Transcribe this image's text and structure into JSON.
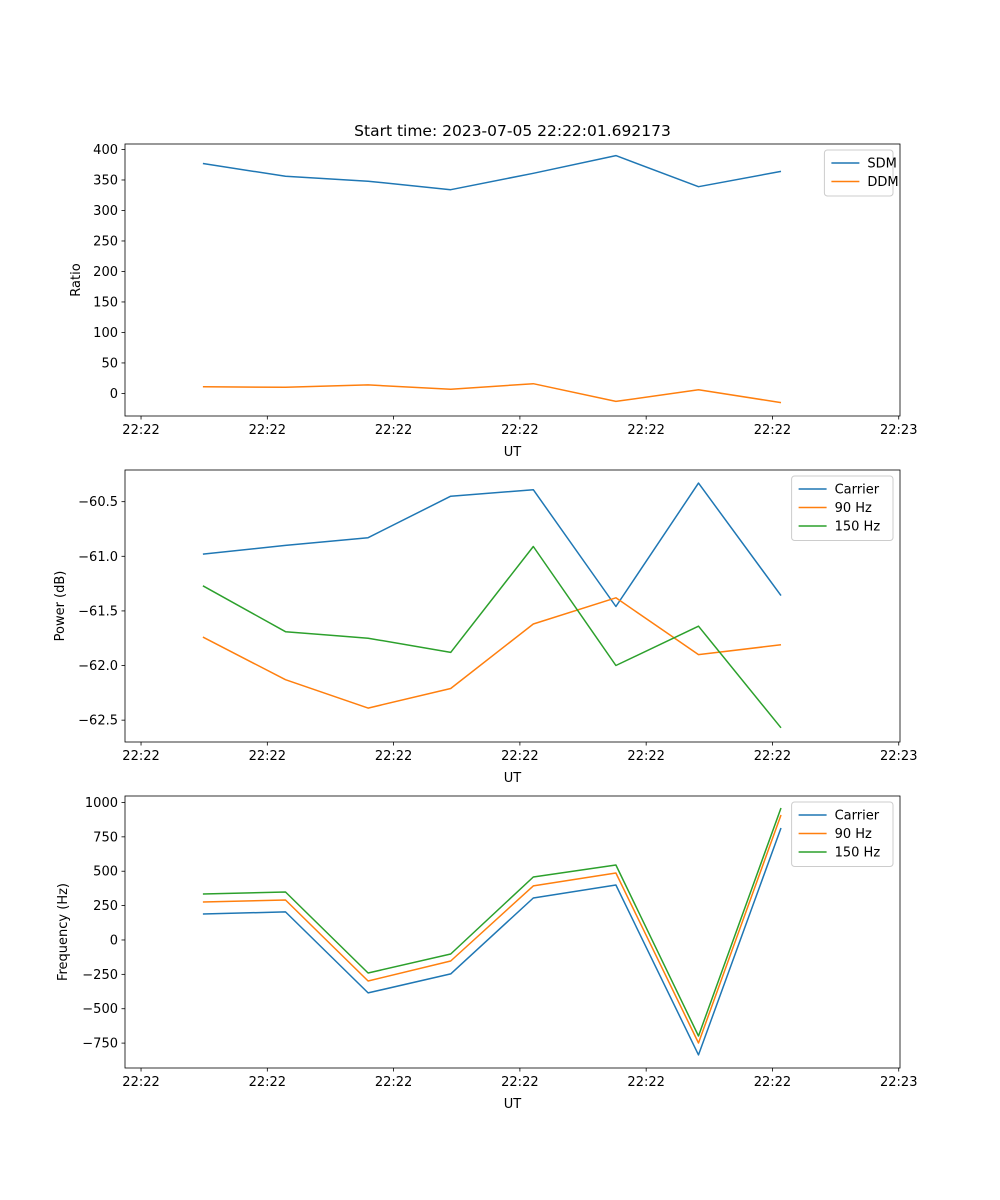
{
  "colors": {
    "blue": "#1f77b4",
    "orange": "#ff7f0e",
    "green": "#2ca02c"
  },
  "chart_data": [
    {
      "type": "line",
      "title": "Start time: 2023-07-05 22:22:01.692173",
      "xlabel": "UT",
      "ylabel": "Ratio",
      "x": [
        0.49,
        1.144,
        1.798,
        2.452,
        3.106,
        3.76,
        4.414,
        5.068
      ],
      "xlim": [
        -0.127,
        6.01
      ],
      "xticks": [
        0,
        1,
        2,
        3,
        4,
        5,
        6
      ],
      "xtick_labels": [
        "22:22",
        "22:22",
        "22:22",
        "22:22",
        "22:22",
        "22:22",
        "22:23"
      ],
      "ylim": [
        -37,
        409
      ],
      "yticks": [
        0,
        50,
        100,
        150,
        200,
        250,
        300,
        350,
        400
      ],
      "ytick_labels": [
        "0",
        "50",
        "100",
        "150",
        "200",
        "250",
        "300",
        "350",
        "400"
      ],
      "legend": "top-right",
      "series": [
        {
          "name": "SDM",
          "color": "#1f77b4",
          "values": [
            377,
            356,
            348,
            334,
            361,
            390,
            339,
            364
          ]
        },
        {
          "name": "DDM",
          "color": "#ff7f0e",
          "values": [
            11,
            10,
            14,
            7,
            16,
            -13,
            6,
            -15
          ]
        }
      ]
    },
    {
      "type": "line",
      "xlabel": "UT",
      "ylabel": "Power (dB)",
      "x": [
        0.49,
        1.144,
        1.798,
        2.452,
        3.106,
        3.76,
        4.414,
        5.068
      ],
      "xlim": [
        -0.127,
        6.01
      ],
      "xticks": [
        0,
        1,
        2,
        3,
        4,
        5,
        6
      ],
      "xtick_labels": [
        "22:22",
        "22:22",
        "22:22",
        "22:22",
        "22:22",
        "22:22",
        "22:23"
      ],
      "ylim": [
        -62.7,
        -60.21
      ],
      "yticks": [
        -60.5,
        -61.0,
        -61.5,
        -62.0,
        -62.5
      ],
      "ytick_labels": [
        "−60.5",
        "−61.0",
        "−61.5",
        "−62.0",
        "−62.5"
      ],
      "legend": "top-right",
      "series": [
        {
          "name": "Carrier",
          "color": "#1f77b4",
          "values": [
            -60.98,
            -60.9,
            -60.83,
            -60.45,
            -60.39,
            -61.46,
            -60.33,
            -61.36
          ]
        },
        {
          "name": "90 Hz",
          "color": "#ff7f0e",
          "values": [
            -61.74,
            -62.13,
            -62.39,
            -62.21,
            -61.62,
            -61.38,
            -61.9,
            -61.81
          ]
        },
        {
          "name": "150 Hz",
          "color": "#2ca02c",
          "values": [
            -61.27,
            -61.69,
            -61.75,
            -61.88,
            -60.91,
            -62.0,
            -61.64,
            -62.57
          ]
        }
      ]
    },
    {
      "type": "line",
      "xlabel": "UT",
      "ylabel": "Frequency (Hz)",
      "x": [
        0.49,
        1.144,
        1.798,
        2.452,
        3.106,
        3.76,
        4.414,
        5.068
      ],
      "xlim": [
        -0.127,
        6.01
      ],
      "xticks": [
        0,
        1,
        2,
        3,
        4,
        5,
        6
      ],
      "xtick_labels": [
        "22:22",
        "22:22",
        "22:22",
        "22:22",
        "22:22",
        "22:22",
        "22:23"
      ],
      "ylim": [
        -931,
        1047
      ],
      "yticks": [
        1000,
        750,
        500,
        250,
        0,
        -250,
        -500,
        -750
      ],
      "ytick_labels": [
        "1000",
        "750",
        "500",
        "250",
        "0",
        "−250",
        "−500",
        "−750"
      ],
      "legend": "top-right",
      "series": [
        {
          "name": "Carrier",
          "color": "#1f77b4",
          "values": [
            189,
            204,
            -385,
            -247,
            305,
            400,
            -836,
            814
          ]
        },
        {
          "name": "90 Hz",
          "color": "#ff7f0e",
          "values": [
            276,
            291,
            -298,
            -153,
            393,
            487,
            -749,
            909
          ]
        },
        {
          "name": "150 Hz",
          "color": "#2ca02c",
          "values": [
            334,
            349,
            -240,
            -102,
            458,
            545,
            -698,
            960
          ]
        }
      ]
    }
  ]
}
